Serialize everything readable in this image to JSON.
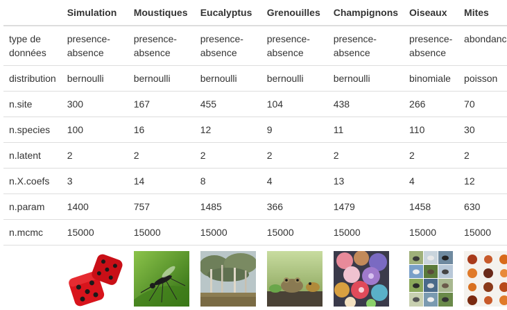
{
  "columns": [
    "",
    "Simulation",
    "Moustiques",
    "Eucalyptus",
    "Grenouilles",
    "Champignons",
    "Oiseaux",
    "Mites"
  ],
  "rows": [
    {
      "label": "type de données",
      "values": [
        "presence-absence",
        "presence-absence",
        "presence-absence",
        "presence-absence",
        "presence-absence",
        "presence-absence",
        "abondance"
      ]
    },
    {
      "label": "distribution",
      "values": [
        "bernoulli",
        "bernoulli",
        "bernoulli",
        "bernoulli",
        "bernoulli",
        "binomiale",
        "poisson"
      ]
    },
    {
      "label": "n.site",
      "values": [
        "300",
        "167",
        "455",
        "104",
        "438",
        "266",
        "70"
      ]
    },
    {
      "label": "n.species",
      "values": [
        "100",
        "16",
        "12",
        "9",
        "11",
        "110",
        "30"
      ]
    },
    {
      "label": "n.latent",
      "values": [
        "2",
        "2",
        "2",
        "2",
        "2",
        "2",
        "2"
      ]
    },
    {
      "label": "n.X.coefs",
      "values": [
        "3",
        "14",
        "8",
        "4",
        "13",
        "4",
        "12"
      ]
    },
    {
      "label": "n.param",
      "values": [
        "1400",
        "757",
        "1485",
        "366",
        "1479",
        "1458",
        "630"
      ]
    },
    {
      "label": "n.mcmc",
      "values": [
        "15000",
        "15000",
        "15000",
        "15000",
        "15000",
        "15000",
        "15000"
      ]
    }
  ],
  "images": [
    "red-dice-image",
    "mosquito-image",
    "eucalyptus-forest-image",
    "frogs-image",
    "mushrooms-image",
    "birds-grid-image",
    "mites-grid-image"
  ]
}
